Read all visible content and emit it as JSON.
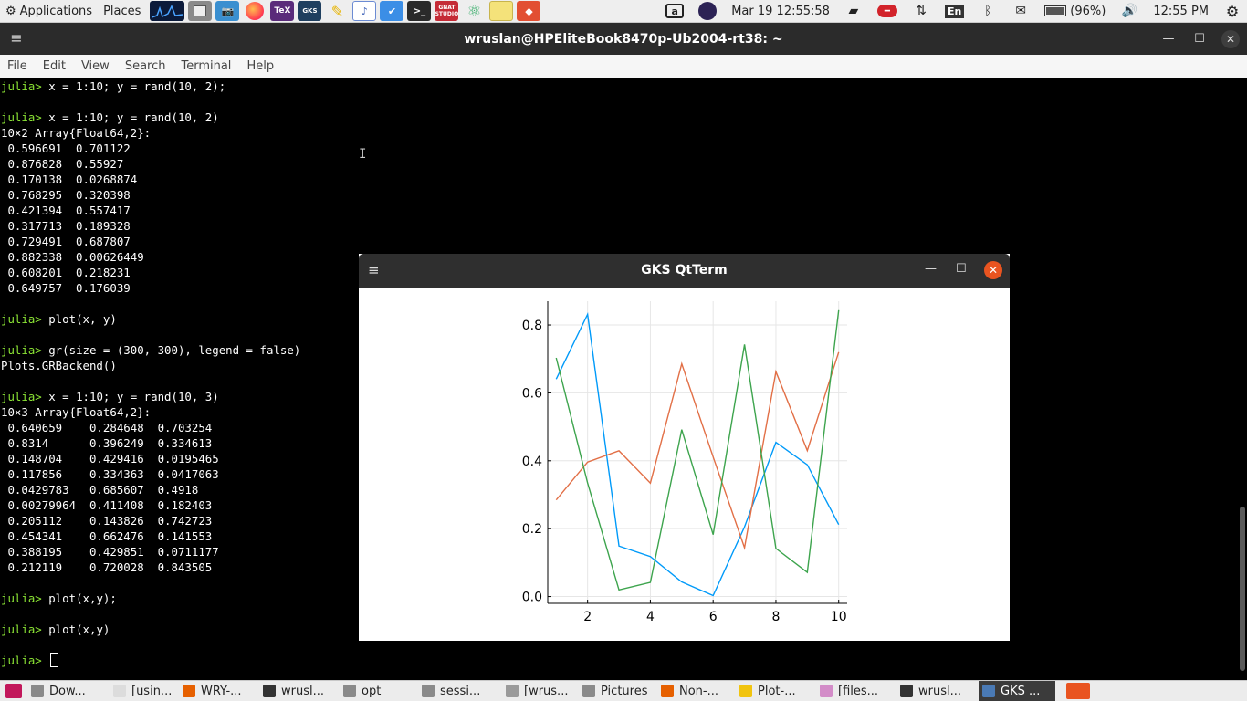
{
  "top_panel": {
    "applications": "Applications",
    "places": "Places",
    "date": "Mar 19",
    "clock_seconds": "12:55:58",
    "language": "En",
    "battery": "(96%)",
    "time": "12:55 PM",
    "launcher_icons": [
      "system-monitor-icon",
      "files-icon",
      "screenshot-icon",
      "firefox-icon",
      "texstudio-icon",
      "gks-icon",
      "gedit-icon",
      "libreoffice-writer-icon",
      "todo-icon",
      "terminal-icon",
      "gnat-studio-icon",
      "atom-icon",
      "sticky-notes-icon",
      "git-icon"
    ],
    "gnat_label": "GNAT STUDIO",
    "gks_label": "GKS",
    "tex_label": "TeX"
  },
  "terminal": {
    "title": "wruslan@HPEliteBook8470p-Ub2004-rt38: ~",
    "menu": [
      "File",
      "Edit",
      "View",
      "Search",
      "Terminal",
      "Help"
    ],
    "prompt": "julia>",
    "lines": [
      {
        "p": true,
        "t": " x = 1:10; y = rand(10, 2);"
      },
      {
        "p": false,
        "t": ""
      },
      {
        "p": true,
        "t": " x = 1:10; y = rand(10, 2)"
      },
      {
        "p": false,
        "t": "10×2 Array{Float64,2}:"
      },
      {
        "p": false,
        "t": " 0.596691  0.701122"
      },
      {
        "p": false,
        "t": " 0.876828  0.55927"
      },
      {
        "p": false,
        "t": " 0.170138  0.0268874"
      },
      {
        "p": false,
        "t": " 0.768295  0.320398"
      },
      {
        "p": false,
        "t": " 0.421394  0.557417"
      },
      {
        "p": false,
        "t": " 0.317713  0.189328"
      },
      {
        "p": false,
        "t": " 0.729491  0.687807"
      },
      {
        "p": false,
        "t": " 0.882338  0.00626449"
      },
      {
        "p": false,
        "t": " 0.608201  0.218231"
      },
      {
        "p": false,
        "t": " 0.649757  0.176039"
      },
      {
        "p": false,
        "t": ""
      },
      {
        "p": true,
        "t": " plot(x, y)"
      },
      {
        "p": false,
        "t": ""
      },
      {
        "p": true,
        "t": " gr(size = (300, 300), legend = false)"
      },
      {
        "p": false,
        "t": "Plots.GRBackend()"
      },
      {
        "p": false,
        "t": ""
      },
      {
        "p": true,
        "t": " x = 1:10; y = rand(10, 3)"
      },
      {
        "p": false,
        "t": "10×3 Array{Float64,2}:"
      },
      {
        "p": false,
        "t": " 0.640659    0.284648  0.703254"
      },
      {
        "p": false,
        "t": " 0.8314      0.396249  0.334613"
      },
      {
        "p": false,
        "t": " 0.148704    0.429416  0.0195465"
      },
      {
        "p": false,
        "t": " 0.117856    0.334363  0.0417063"
      },
      {
        "p": false,
        "t": " 0.0429783   0.685607  0.4918"
      },
      {
        "p": false,
        "t": " 0.00279964  0.411408  0.182403"
      },
      {
        "p": false,
        "t": " 0.205112    0.143826  0.742723"
      },
      {
        "p": false,
        "t": " 0.454341    0.662476  0.141553"
      },
      {
        "p": false,
        "t": " 0.388195    0.429851  0.0711177"
      },
      {
        "p": false,
        "t": " 0.212119    0.720028  0.843505"
      },
      {
        "p": false,
        "t": ""
      },
      {
        "p": true,
        "t": " plot(x,y);"
      },
      {
        "p": false,
        "t": ""
      },
      {
        "p": true,
        "t": " plot(x,y)"
      },
      {
        "p": false,
        "t": ""
      },
      {
        "p": true,
        "t": " ",
        "cursor": true
      }
    ]
  },
  "gks_window": {
    "title": "GKS QtTerm"
  },
  "chart_data": {
    "type": "line",
    "x": [
      1,
      2,
      3,
      4,
      5,
      6,
      7,
      8,
      9,
      10
    ],
    "xlim": [
      0.73,
      10.27
    ],
    "ylim": [
      -0.02,
      0.87
    ],
    "xticks": [
      2,
      4,
      6,
      8,
      10
    ],
    "yticks": [
      0.0,
      0.2,
      0.4,
      0.6,
      0.8
    ],
    "ytick_labels": [
      "0.0",
      "0.2",
      "0.4",
      "0.6",
      "0.8"
    ],
    "grid": true,
    "legend": false,
    "series": [
      {
        "color": "#009af9",
        "values": [
          0.640659,
          0.8314,
          0.148704,
          0.117856,
          0.0429783,
          0.00279964,
          0.205112,
          0.454341,
          0.388195,
          0.212119
        ]
      },
      {
        "color": "#e26f46",
        "values": [
          0.284648,
          0.396249,
          0.429416,
          0.334363,
          0.685607,
          0.411408,
          0.143826,
          0.662476,
          0.429851,
          0.720028
        ]
      },
      {
        "color": "#3da44d",
        "values": [
          0.703254,
          0.334613,
          0.0195465,
          0.0417063,
          0.4918,
          0.182403,
          0.742723,
          0.141553,
          0.0711177,
          0.843505
        ]
      }
    ]
  },
  "taskbar": {
    "items": [
      {
        "label": "Dow...",
        "icon": "files-icon",
        "color": "#8a8a8a"
      },
      {
        "label": "[usin...",
        "icon": "text-editor-icon",
        "color": "#dcdcdc"
      },
      {
        "label": "WRY-...",
        "icon": "firefox-icon",
        "color": "#e66000"
      },
      {
        "label": "wrusl...",
        "icon": "terminal-icon",
        "color": "#333333"
      },
      {
        "label": "opt",
        "icon": "files-icon",
        "color": "#8a8a8a"
      },
      {
        "label": "sessi...",
        "icon": "files-icon",
        "color": "#8a8a8a"
      },
      {
        "label": "[wrus...",
        "icon": "image-viewer-icon",
        "color": "#9a9a9a"
      },
      {
        "label": "Pictures",
        "icon": "files-icon",
        "color": "#8a8a8a"
      },
      {
        "label": "Non-...",
        "icon": "firefox-icon",
        "color": "#e66000"
      },
      {
        "label": "Plot-...",
        "icon": "text-editor-icon",
        "color": "#f1c40f"
      },
      {
        "label": "[files...",
        "icon": "app-icon",
        "color": "#d38cc8"
      },
      {
        "label": "wrusl...",
        "icon": "terminal-icon",
        "color": "#333333"
      },
      {
        "label": "GKS ...",
        "icon": "gks-icon",
        "color": "#4a7ab5",
        "active": true
      }
    ]
  }
}
